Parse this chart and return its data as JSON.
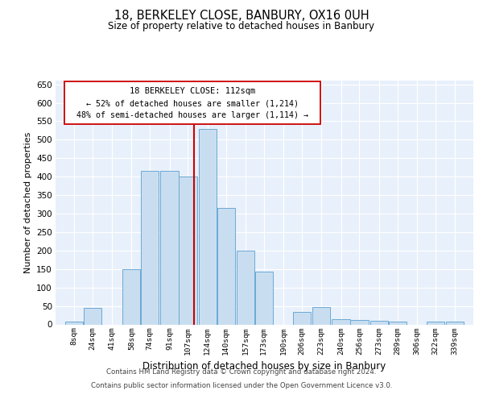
{
  "title": "18, BERKELEY CLOSE, BANBURY, OX16 0UH",
  "subtitle": "Size of property relative to detached houses in Banbury",
  "xlabel": "Distribution of detached houses by size in Banbury",
  "ylabel": "Number of detached properties",
  "bar_labels": [
    "8sqm",
    "24sqm",
    "41sqm",
    "58sqm",
    "74sqm",
    "91sqm",
    "107sqm",
    "124sqm",
    "140sqm",
    "157sqm",
    "173sqm",
    "190sqm",
    "206sqm",
    "223sqm",
    "240sqm",
    "256sqm",
    "273sqm",
    "289sqm",
    "306sqm",
    "322sqm",
    "339sqm"
  ],
  "bar_values": [
    8,
    45,
    0,
    150,
    415,
    415,
    400,
    530,
    315,
    200,
    143,
    0,
    33,
    48,
    15,
    13,
    10,
    7,
    0,
    7,
    7
  ],
  "bar_color": "#c9ddf0",
  "bar_edge_color": "#6aaad4",
  "red_line_x": 112,
  "annotation_line1": "18 BERKELEY CLOSE: 112sqm",
  "annotation_line2": "← 52% of detached houses are smaller (1,214)",
  "annotation_line3": "48% of semi-detached houses are larger (1,114) →",
  "ylim": [
    0,
    660
  ],
  "yticks": [
    0,
    50,
    100,
    150,
    200,
    250,
    300,
    350,
    400,
    450,
    500,
    550,
    600,
    650
  ],
  "footer_line1": "Contains HM Land Registry data © Crown copyright and database right 2024.",
  "footer_line2": "Contains public sector information licensed under the Open Government Licence v3.0.",
  "background_color": "#e8f0fb",
  "grid_color": "#ffffff",
  "annotation_box_edge_color": "#cc0000"
}
